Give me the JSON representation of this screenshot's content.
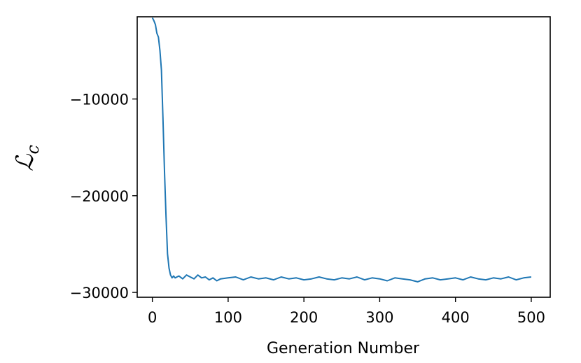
{
  "chart_data": {
    "type": "line",
    "title": "",
    "xlabel": "Generation Number",
    "ylabel": "ℒ",
    "ylabel_subscript": "c",
    "xlim": [
      -20,
      525
    ],
    "ylim": [
      -30500,
      -1500
    ],
    "x_ticks": [
      0,
      100,
      200,
      300,
      400,
      500
    ],
    "x_tick_labels": [
      "0",
      "100",
      "200",
      "300",
      "400",
      "500"
    ],
    "y_ticks": [
      -10000,
      -20000,
      -30000
    ],
    "y_tick_labels": [
      "−10000",
      "−20000",
      "−30000"
    ],
    "grid": false,
    "legend": "none",
    "line_color": "#1f77b4",
    "series": [
      {
        "x": [
          0,
          2,
          4,
          6,
          8,
          10,
          12,
          14,
          16,
          18,
          20,
          22,
          24,
          26,
          28,
          30,
          35,
          40,
          45,
          50,
          55,
          60,
          65,
          70,
          75,
          80,
          85,
          90,
          100,
          110,
          120,
          130,
          140,
          150,
          160,
          170,
          180,
          190,
          200,
          210,
          220,
          230,
          240,
          250,
          260,
          270,
          280,
          290,
          300,
          310,
          320,
          330,
          340,
          350,
          360,
          370,
          380,
          390,
          400,
          410,
          420,
          430,
          440,
          450,
          460,
          470,
          480,
          490,
          500
        ],
        "y": [
          -1600,
          -1900,
          -2300,
          -3200,
          -3600,
          -5000,
          -7000,
          -12000,
          -17500,
          -22000,
          -26000,
          -27500,
          -28200,
          -28500,
          -28300,
          -28500,
          -28300,
          -28600,
          -28200,
          -28400,
          -28600,
          -28200,
          -28500,
          -28400,
          -28700,
          -28500,
          -28800,
          -28600,
          -28500,
          -28400,
          -28700,
          -28400,
          -28600,
          -28500,
          -28700,
          -28400,
          -28600,
          -28500,
          -28700,
          -28600,
          -28400,
          -28600,
          -28700,
          -28500,
          -28600,
          -28400,
          -28700,
          -28500,
          -28600,
          -28800,
          -28500,
          -28600,
          -28700,
          -28900,
          -28600,
          -28500,
          -28700,
          -28600,
          -28500,
          -28700,
          -28400,
          -28600,
          -28700,
          -28500,
          -28600,
          -28400,
          -28700,
          -28500,
          -28400
        ]
      }
    ]
  }
}
